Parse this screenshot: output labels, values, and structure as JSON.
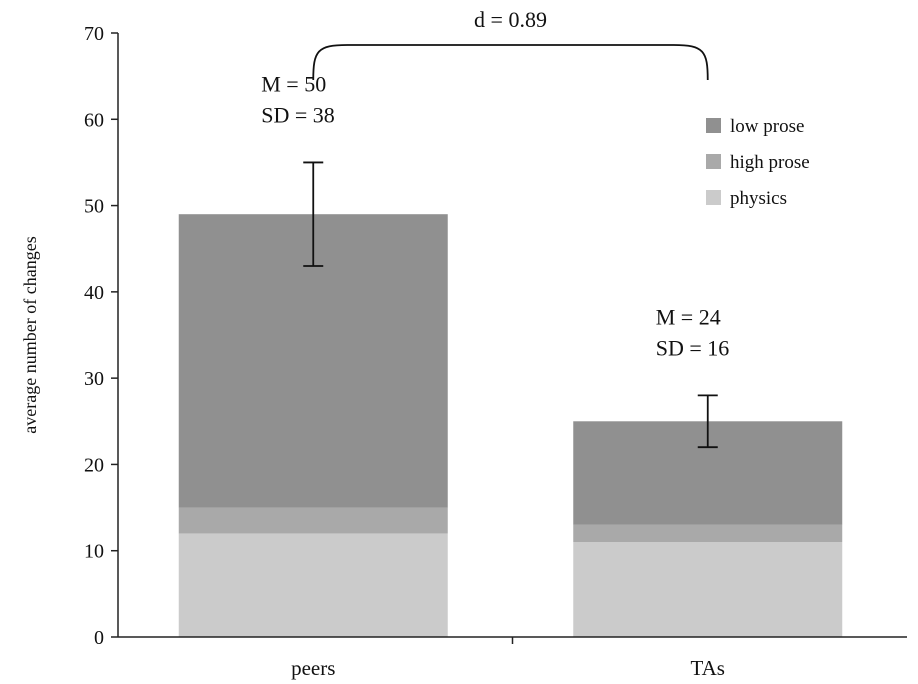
{
  "chart_data": {
    "type": "bar",
    "stacked": true,
    "title": "",
    "xlabel": "",
    "ylabel": "average number of changes",
    "ylim": [
      0,
      70
    ],
    "yticks": [
      0,
      10,
      20,
      30,
      40,
      50,
      60,
      70
    ],
    "grid": false,
    "legend_position": "top-right",
    "categories": [
      "peers",
      "TAs"
    ],
    "series": [
      {
        "name": "physics",
        "values": [
          12,
          11
        ],
        "color": "#cbcbcb"
      },
      {
        "name": "high prose",
        "values": [
          3,
          2
        ],
        "color": "#a9a9a9"
      },
      {
        "name": "low prose",
        "values": [
          34,
          12
        ],
        "color": "#909090"
      }
    ],
    "legend_order": [
      "low prose",
      "high prose",
      "physics"
    ],
    "error_bars": [
      {
        "category": "peers",
        "low": 43,
        "high": 55
      },
      {
        "category": "TAs",
        "low": 22,
        "high": 28
      }
    ],
    "bar_annotations": [
      {
        "category": "peers",
        "lines": [
          "M = 50",
          "SD = 38"
        ]
      },
      {
        "category": "TAs",
        "lines": [
          "M = 24",
          "SD = 16"
        ]
      }
    ],
    "comparison": {
      "label": "d = 0.89",
      "between": [
        "peers",
        "TAs"
      ]
    }
  }
}
